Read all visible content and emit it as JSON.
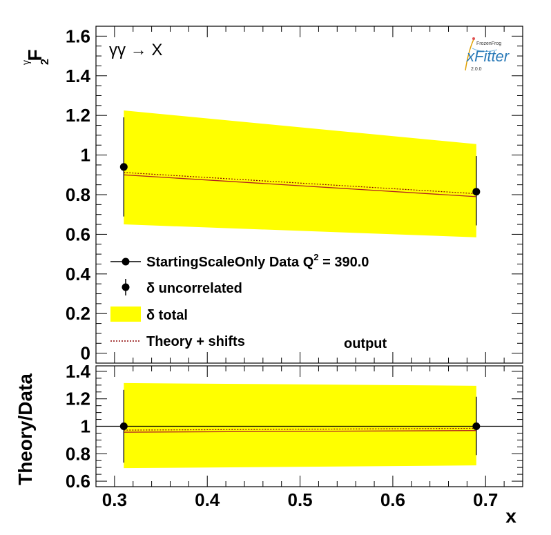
{
  "chart_data": [
    {
      "type": "line",
      "panel": "main",
      "ylabel_main": "F",
      "ylabel_sub": "2",
      "ylabel_sup": "γ",
      "annotation": "γγ → X",
      "ylim": [
        -0.05,
        1.65
      ],
      "yticks": [
        0,
        0.2,
        0.4,
        0.6,
        0.8,
        1,
        1.2,
        1.4,
        1.6
      ],
      "ytick_labels": [
        "0",
        "0.2",
        "0.4",
        "0.6",
        "0.8",
        "1",
        "1.2",
        "1.4",
        "1.6"
      ],
      "legend_header": "StartingScaleOnly  Data Q",
      "legend_header_sup": "2",
      "legend_header_tail": " = 390.0",
      "legend": [
        {
          "name": "δ uncorrelated"
        },
        {
          "name": "δ total"
        },
        {
          "name": "Theory + shifts"
        }
      ],
      "extra_label": "output",
      "series": [
        {
          "name": "Data",
          "x": [
            0.31,
            0.69
          ],
          "y": [
            0.94,
            0.815
          ],
          "yerr_low": [
            0.69,
            0.645
          ],
          "yerr_high": [
            1.19,
            0.995
          ]
        },
        {
          "name": "δ total",
          "x": [
            0.31,
            0.69
          ],
          "y_low": [
            0.65,
            0.585
          ],
          "y_high": [
            1.225,
            1.055
          ]
        },
        {
          "name": "Theory",
          "x": [
            0.31,
            0.69
          ],
          "y": [
            0.9,
            0.79
          ]
        },
        {
          "name": "Theory + shifts",
          "x": [
            0.31,
            0.69
          ],
          "y": [
            0.912,
            0.805
          ]
        }
      ]
    },
    {
      "type": "line",
      "panel": "ratio",
      "ylabel": "Theory/Data",
      "xlabel": "x",
      "xlim": [
        0.28,
        0.74
      ],
      "ylim": [
        0.56,
        1.44
      ],
      "xticks": [
        0.3,
        0.4,
        0.5,
        0.6,
        0.7
      ],
      "xtick_labels": [
        "0.3",
        "0.4",
        "0.5",
        "0.6",
        "0.7"
      ],
      "yticks": [
        0.6,
        0.8,
        1,
        1.2,
        1.4
      ],
      "ytick_labels": [
        "0.6",
        "0.8",
        "1",
        "1.2",
        "1.4"
      ],
      "reference": 1,
      "series": [
        {
          "name": "Data",
          "x": [
            0.31,
            0.69
          ],
          "y": [
            1.0,
            1.0
          ],
          "yerr_low": [
            0.735,
            0.79
          ],
          "yerr_high": [
            1.265,
            1.215
          ]
        },
        {
          "name": "δ total",
          "x": [
            0.31,
            0.69
          ],
          "y_low": [
            0.695,
            0.715
          ],
          "y_high": [
            1.315,
            1.295
          ]
        },
        {
          "name": "Theory",
          "x": [
            0.31,
            0.69
          ],
          "y": [
            0.957,
            0.969
          ]
        },
        {
          "name": "Theory + shifts",
          "x": [
            0.31,
            0.69
          ],
          "y": [
            0.972,
            0.985
          ]
        }
      ]
    }
  ],
  "logo": {
    "top": "FrozenFrog",
    "main": "xFitter",
    "version": "2.0.0"
  },
  "colors": {
    "band": "#ffff00",
    "theory": "#b22222",
    "shifts": "#8b0000",
    "data": "#000000"
  }
}
